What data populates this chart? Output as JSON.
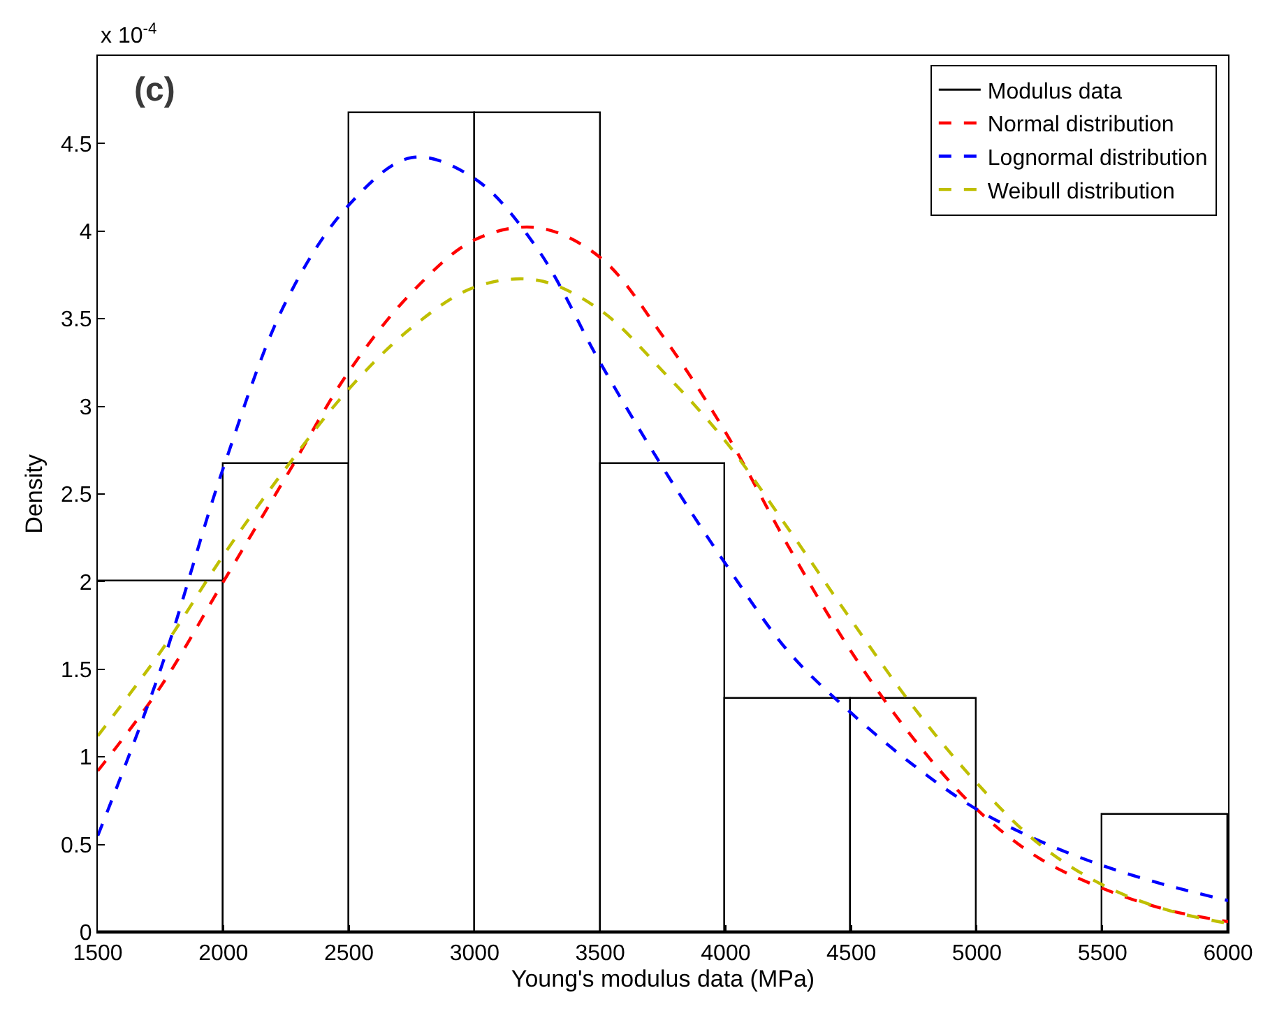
{
  "chart_data": {
    "type": "histogram",
    "xlabel": "Young's modulus data (MPa)",
    "ylabel": "Density",
    "annotations": [
      "x 10$^{-4}$",
      "(c)"
    ],
    "series": [
      {
        "type": "histogram",
        "name": "Modulus data",
        "color": "#000000",
        "bins": [
          1500,
          2000,
          2500,
          3000,
          3500,
          4000,
          4500,
          5000,
          5500,
          6000
        ],
        "values": [
          2.0,
          2.67,
          4.67,
          4.67,
          2.67,
          1.33,
          1.33,
          0,
          0.67
        ]
      },
      {
        "type": "line",
        "name": "Normal distribution",
        "color": "#ff0000",
        "line_style": "dashed",
        "x": [
          1500,
          1750,
          2000,
          2250,
          2500,
          2750,
          3000,
          3250,
          3500,
          3750,
          4000,
          4250,
          4500,
          4750,
          5000,
          5250,
          5500,
          5750,
          6000
        ],
        "values": [
          0.92,
          1.4,
          2.0,
          2.6,
          3.2,
          3.65,
          3.95,
          4.02,
          3.85,
          3.4,
          2.85,
          2.2,
          1.6,
          1.1,
          0.7,
          0.42,
          0.25,
          0.13,
          0.06
        ]
      },
      {
        "type": "line",
        "name": "Lognormal distribution",
        "color": "#0000ff",
        "line_style": "dashed",
        "x": [
          1500,
          1750,
          2000,
          2250,
          2500,
          2750,
          3000,
          3250,
          3500,
          3750,
          4000,
          4250,
          4500,
          4750,
          5000,
          5250,
          5500,
          5750,
          6000
        ],
        "values": [
          0.55,
          1.5,
          2.65,
          3.6,
          4.15,
          4.42,
          4.3,
          3.9,
          3.25,
          2.65,
          2.1,
          1.6,
          1.25,
          0.95,
          0.7,
          0.52,
          0.38,
          0.27,
          0.18
        ]
      },
      {
        "type": "line",
        "name": "Weibull distribution",
        "color": "#bfbf00",
        "line_style": "dashed",
        "x": [
          1500,
          1750,
          2000,
          2250,
          2500,
          2750,
          3000,
          3250,
          3500,
          3750,
          4000,
          4250,
          4500,
          4750,
          5000,
          5250,
          5500,
          5750,
          6000
        ],
        "values": [
          1.12,
          1.6,
          2.15,
          2.65,
          3.1,
          3.45,
          3.68,
          3.72,
          3.55,
          3.2,
          2.8,
          2.3,
          1.78,
          1.28,
          0.85,
          0.5,
          0.27,
          0.13,
          0.05
        ]
      }
    ],
    "xlim": [
      1500,
      6000
    ],
    "xticks": [
      1500,
      2000,
      2500,
      3000,
      3500,
      4000,
      4500,
      5000,
      5500,
      6000
    ],
    "ylim": [
      0,
      5
    ],
    "yticks": [
      0,
      0.5,
      1,
      1.5,
      2,
      2.5,
      3,
      3.5,
      4,
      4.5
    ],
    "grid": false,
    "legend": "top right",
    "marker": "none"
  }
}
